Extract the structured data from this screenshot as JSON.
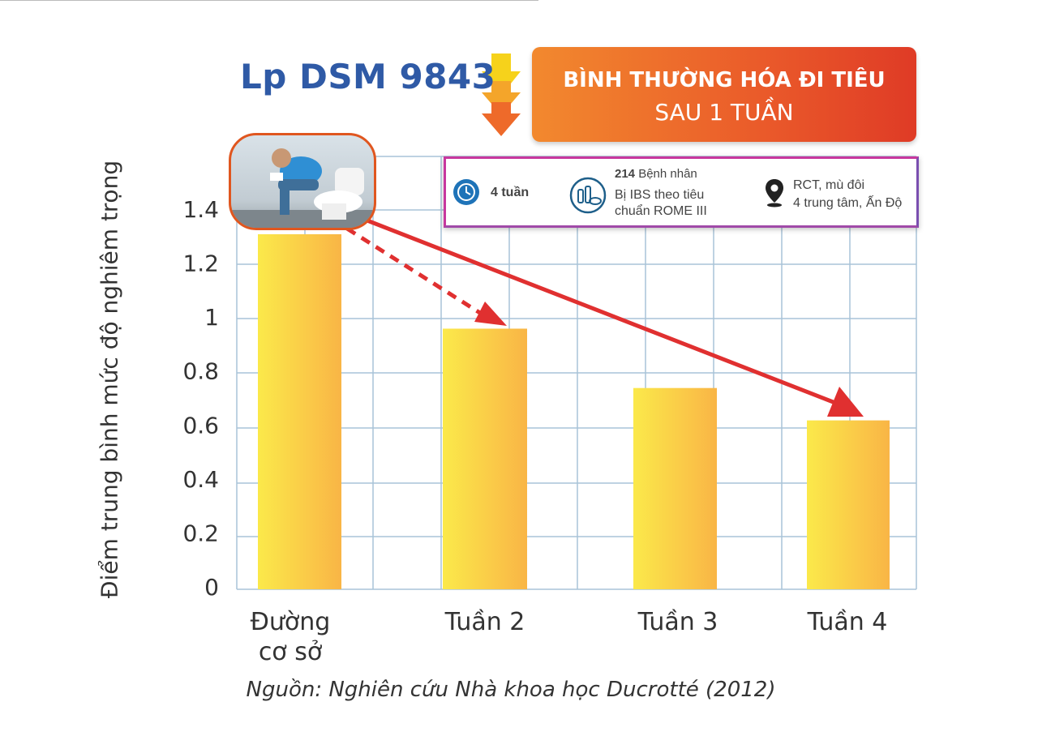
{
  "brand": "Lp DSM 9843",
  "banner": {
    "line1": "BÌNH THƯỜNG HÓA ĐI TIÊU",
    "line2": "SAU 1 TUẦN"
  },
  "info": {
    "duration": "4 tuần",
    "patients_count": "214",
    "patients_label": "Bệnh nhân",
    "patients_desc_1": "Bị  IBS  theo  tiêu",
    "patients_desc_2": "chuẩn ROME III",
    "design_1": "RCT, mù đôi",
    "design_2": "4 trung tâm, Ấn Độ"
  },
  "source": "Nguồn: Nghiên cứu Nhà khoa học Ducrotté (2012)",
  "colors": {
    "bar_start": "#fbe94a",
    "bar_end": "#f9b546",
    "arrow": "#e03030",
    "grid": "#a9c3d8",
    "banner": "#ea5a2a",
    "brand": "#2f5aa6"
  },
  "icons": {
    "duration": "clock-icon",
    "patients": "medicine-icon",
    "design": "location-pin-icon",
    "down": "down-arrows-icon",
    "photo": "patient-photo"
  },
  "chart_data": {
    "type": "bar",
    "categories": [
      [
        "Đường",
        "cơ sở"
      ],
      [
        "Tuần 2"
      ],
      [
        "Tuần 3"
      ],
      [
        "Tuần 4"
      ]
    ],
    "values": [
      1.31,
      0.96,
      0.74,
      0.62
    ],
    "ylabel": "Điểm trung bình mức độ nghiêm trọng",
    "yticks": [
      "0",
      "0.2",
      "0.4",
      "0.6",
      "0.8",
      "1",
      "1.2",
      "1.4"
    ],
    "ylim": [
      0,
      1.4
    ],
    "grid": true
  }
}
